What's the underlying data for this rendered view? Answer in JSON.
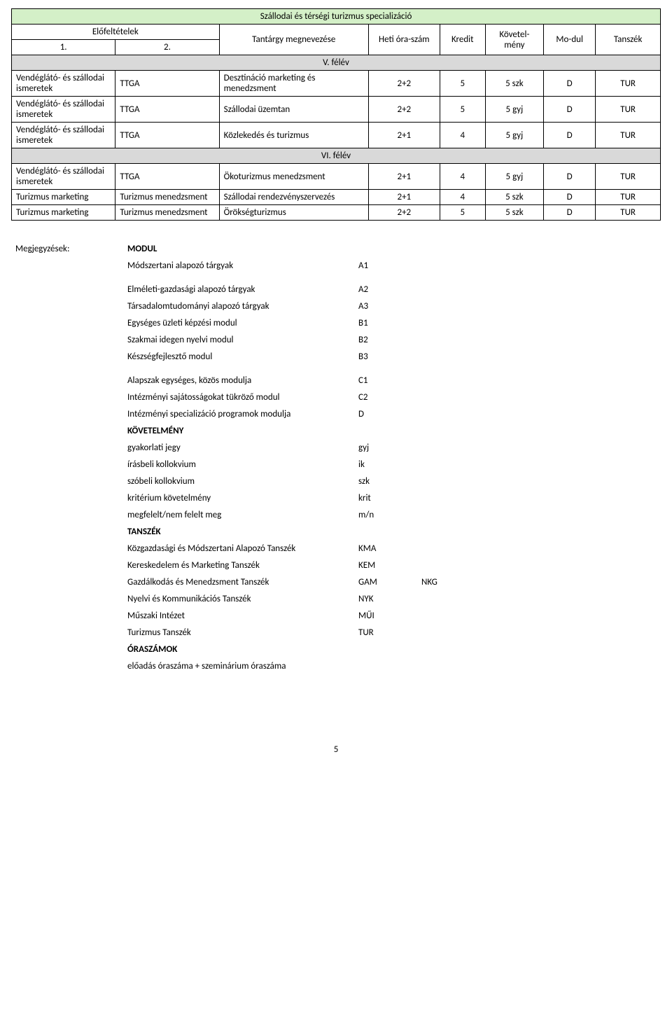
{
  "title": "Szállodai és térségi turizmus specializáció",
  "header": {
    "prereq": "Előfeltételek",
    "n1": "1.",
    "n2": "2.",
    "subject": "Tantárgy megnevezése",
    "hours": "Heti óra-szám",
    "credit": "Kredit",
    "req": "Követel-mény",
    "mod": "Mo-dul",
    "dept": "Tanszék"
  },
  "sections": {
    "s5": "V. félév",
    "s6": "VI. félév"
  },
  "rows": [
    {
      "p1": "Vendéglátó- és szállodai ismeretek",
      "p2": "TTGA",
      "subj": "Desztináció marketing és menedzsment",
      "subj_bold": true,
      "h": "2+2",
      "cr": "5",
      "req": "5 szk",
      "mod": "D",
      "dep": "TUR"
    },
    {
      "p1": "Vendéglátó- és szállodai ismeretek",
      "p2": "TTGA",
      "subj": "Szállodai üzemtan",
      "subj_bold": true,
      "h": "2+2",
      "cr": "5",
      "req": "5 gyj",
      "mod": "D",
      "dep": "TUR"
    },
    {
      "p1": "Vendéglátó- és szállodai ismeretek",
      "p2": "TTGA",
      "subj": "Közlekedés és turizmus",
      "subj_bold": true,
      "h": "2+1",
      "cr": "4",
      "req": "5 gyj",
      "mod": "D",
      "dep": "TUR"
    }
  ],
  "rows6": [
    {
      "p1": "Vendéglátó- és szállodai ismeretek",
      "p2": "TTGA",
      "subj": "Ökoturizmus menedzsment",
      "subj_bold": true,
      "h": "2+1",
      "cr": "4",
      "req": "5 gyj",
      "mod": "D",
      "dep": "TUR"
    },
    {
      "p1": "Turizmus marketing",
      "p2": "Turizmus menedzsment",
      "subj": "Szállodai rendezvényszervezés",
      "subj_bold": true,
      "h": "2+1",
      "cr": "4",
      "req": "5 szk",
      "mod": "D",
      "dep": "TUR"
    },
    {
      "p1": "Turizmus marketing",
      "p2": "Turizmus menedzsment",
      "subj": "Örökségturizmus",
      "subj_bold": true,
      "h": "2+2",
      "cr": "5",
      "req": "5 szk",
      "mod": "D",
      "dep": "TUR"
    }
  ],
  "notes": {
    "label": "Megjegyzések:",
    "modulHead": "MODUL",
    "items1": [
      {
        "t": "Módszertani alapozó tárgyak",
        "c": "A1"
      }
    ],
    "items2": [
      {
        "t": "Elméleti-gazdasági alapozó tárgyak",
        "c": "A2"
      },
      {
        "t": "Társadalomtudományi alapozó tárgyak",
        "c": "A3"
      },
      {
        "t": "Egységes üzleti képzési modul",
        "c": "B1"
      },
      {
        "t": "Szakmai idegen nyelvi modul",
        "c": "B2"
      },
      {
        "t": "Készségfejlesztő modul",
        "c": "B3"
      }
    ],
    "items3": [
      {
        "t": "Alapszak egységes, közös modulja",
        "c": "C1"
      },
      {
        "t": "Intézményi sajátosságokat tükröző modul",
        "c": "C2"
      },
      {
        "t": "Intézményi specializáció programok modulja",
        "c": "D"
      }
    ],
    "kovHead": "KÖVETELMÉNY",
    "kov": [
      {
        "t": "gyakorlati jegy",
        "c": "gyj"
      },
      {
        "t": "írásbeli kollokvium",
        "c": "ik"
      },
      {
        "t": "szóbeli kollokvium",
        "c": "szk"
      },
      {
        "t": "kritérium követelmény",
        "c": "krit"
      },
      {
        "t": "megfelelt/nem felelt meg",
        "c": "m/n"
      }
    ],
    "tanHead": "TANSZÉK",
    "tan": [
      {
        "t": "Közgazdasági és Módszertani Alapozó Tanszék",
        "c": "KMA",
        "e": ""
      },
      {
        "t": "Kereskedelem és Marketing Tanszék",
        "c": "KEM",
        "e": ""
      },
      {
        "t": "Gazdálkodás és Menedzsment Tanszék",
        "c": "GAM",
        "e": "NKG"
      },
      {
        "t": "Nyelvi és Kommunikációs  Tanszék",
        "c": "NYK",
        "e": ""
      },
      {
        "t": "Műszaki Intézet",
        "c": "MŰI",
        "e": ""
      },
      {
        "t": "Turizmus Tanszék",
        "c": "TUR",
        "e": ""
      }
    ],
    "oraHead": "ÓRASZÁMOK",
    "ora": "előadás óraszáma + szeminárium óraszáma"
  },
  "pageNumber": "5"
}
